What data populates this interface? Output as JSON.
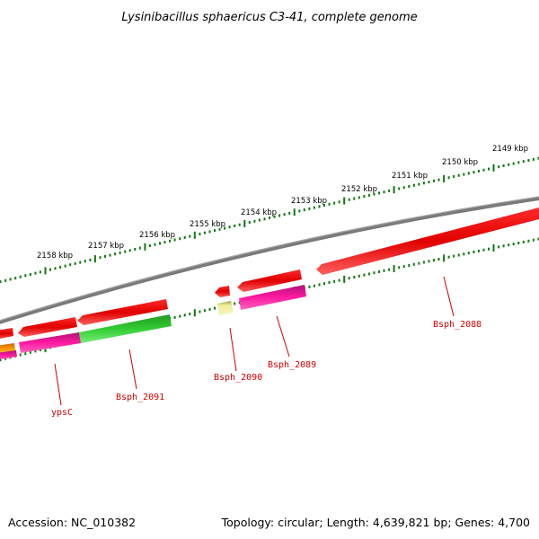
{
  "title": "Lysinibacillus sphaericus C3-41, complete genome",
  "footer": {
    "accession": "Accession: NC_010382",
    "summary": "Topology: circular; Length: 4,639,821 bp; Genes: 4,700"
  },
  "ruler": {
    "ticks": [
      {
        "label": "2149 kbp"
      },
      {
        "label": "2150 kbp"
      },
      {
        "label": "2151 kbp"
      },
      {
        "label": "2152 kbp"
      },
      {
        "label": "2153 kbp"
      },
      {
        "label": "2154 kbp"
      },
      {
        "label": "2155 kbp"
      },
      {
        "label": "2156 kbp"
      },
      {
        "label": "2157 kbp"
      },
      {
        "label": "2158 kbp"
      }
    ]
  },
  "gene_labels": [
    "Bsph_2088",
    "Bsph_2089",
    "Bsph_2090",
    "Bsph_2091",
    "ypsC"
  ],
  "colors": {
    "backbone": "#808080",
    "cds": "#e00000",
    "magenta_feature": "#e0148c",
    "green_feature": "#33bb33",
    "orange_feature": "#ee8800",
    "pale_feature": "#eeee99",
    "ruler_ticks": "#117711",
    "label_text": "#d00000"
  }
}
